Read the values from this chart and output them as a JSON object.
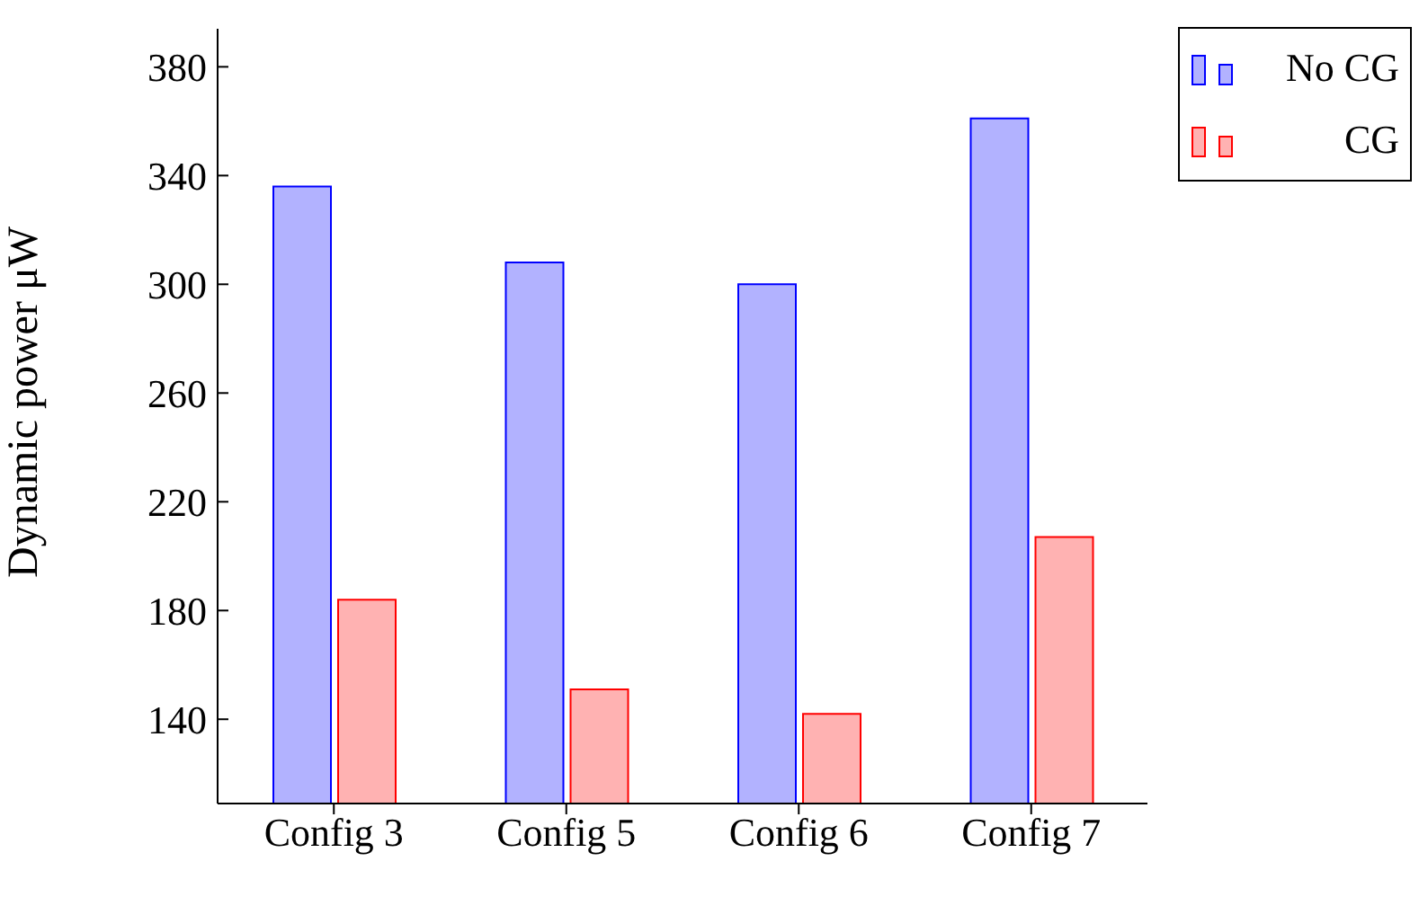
{
  "chart_data": {
    "type": "bar",
    "ylabel": "Dynamic power μW",
    "categories": [
      "Config 3",
      "Config 5",
      "Config 6",
      "Config 7"
    ],
    "series": [
      {
        "name": "No CG",
        "color": "#0000ff",
        "values": [
          336,
          308,
          300,
          361
        ]
      },
      {
        "name": "CG",
        "color": "#ff0000",
        "values": [
          184,
          151,
          142,
          207
        ]
      }
    ],
    "ylim": [
      109,
      394
    ],
    "yticks": [
      140,
      180,
      220,
      260,
      300,
      340,
      380
    ],
    "legend": "top right"
  }
}
